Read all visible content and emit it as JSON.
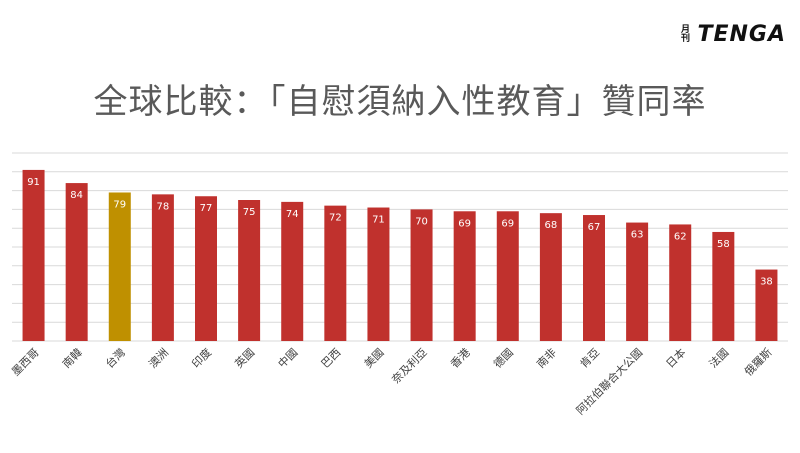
{
  "logo": {
    "seal": "月刊",
    "word": "TENGA"
  },
  "chart_data": {
    "type": "bar",
    "title": "全球比較：「自慰須納入性教育」贊同率",
    "categories": [
      "墨西哥",
      "南韓",
      "台灣",
      "澳洲",
      "印度",
      "英國",
      "中國",
      "巴西",
      "美國",
      "奈及利亞",
      "香港",
      "德國",
      "南非",
      "肯亞",
      "阿拉伯聯合大公國",
      "日本",
      "法國",
      "俄羅斯"
    ],
    "values": [
      91,
      84,
      79,
      78,
      77,
      75,
      74,
      72,
      71,
      70,
      69,
      69,
      68,
      67,
      63,
      62,
      58,
      38
    ],
    "highlight_index": 2,
    "colors": {
      "bar": "#c0312d",
      "highlight": "#bf9000",
      "grid": "#d9d9d9",
      "label": "#ffffff"
    },
    "ylim": [
      0,
      100
    ],
    "grid": true,
    "data_labels": true
  }
}
